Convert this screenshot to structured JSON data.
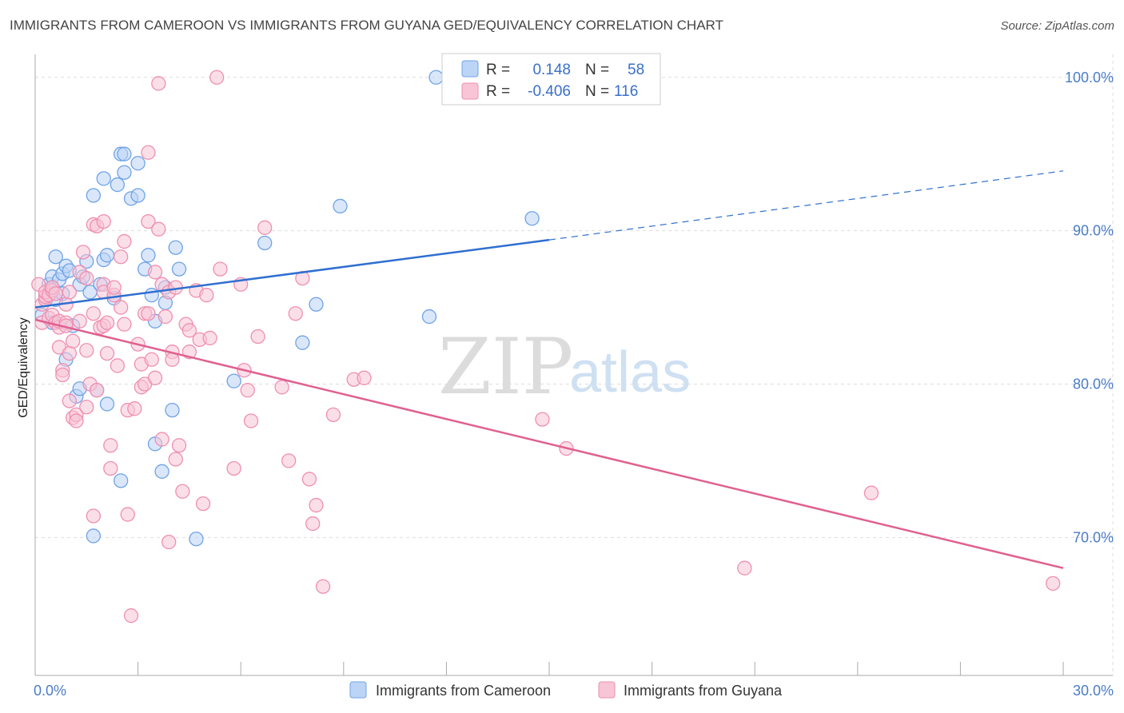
{
  "title": "IMMIGRANTS FROM CAMEROON VS IMMIGRANTS FROM GUYANA GED/EQUIVALENCY CORRELATION CHART",
  "source": "Source: ZipAtlas.com",
  "watermark": {
    "zip": "ZIP",
    "atlas": "atlas"
  },
  "colors": {
    "blue": "#6fa3e6",
    "blue_fill": "#bcd4f5",
    "blue_line": "#2f6fd0",
    "pink": "#ef8fb1",
    "pink_fill": "#f7c5d6",
    "pink_line": "#e0608f",
    "grid": "#dddddd",
    "axis_text": "#4a7cc9"
  },
  "legend": {
    "row1": {
      "r_label": "R =",
      "r_value": "0.148",
      "n_label": "N =",
      "n_value": "58"
    },
    "row2": {
      "r_label": "R =",
      "r_value": "-0.406",
      "n_label": "N =",
      "n_value": "116"
    }
  },
  "chart_data": {
    "type": "scatter",
    "xlabel": "",
    "ylabel": "GED/Equivalency",
    "xlim": [
      0,
      30
    ],
    "ylim": [
      61,
      101.5
    ],
    "x_tick_labels": [
      "0.0%",
      "30.0%"
    ],
    "y_ticks": [
      70,
      80,
      90,
      100
    ],
    "y_tick_labels": [
      "70.0%",
      "80.0%",
      "90.0%",
      "100.0%"
    ],
    "grid": true,
    "legend_position": "bottom",
    "series": [
      {
        "name": "Immigrants from Cameroon",
        "color": "#6fa3e6",
        "trend": {
          "x": [
            0,
            15
          ],
          "y": [
            85.0,
            89.4
          ],
          "dashed_to": [
            30,
            93.9
          ]
        },
        "points": [
          [
            0.2,
            84.5
          ],
          [
            0.3,
            85.5
          ],
          [
            0.4,
            86.5
          ],
          [
            0.5,
            87.0
          ],
          [
            0.5,
            86.3
          ],
          [
            0.5,
            84.0
          ],
          [
            0.6,
            88.3
          ],
          [
            0.6,
            85.5
          ],
          [
            0.7,
            86.8
          ],
          [
            0.8,
            87.2
          ],
          [
            0.8,
            85.9
          ],
          [
            0.9,
            81.6
          ],
          [
            0.9,
            87.7
          ],
          [
            1.0,
            87.4
          ],
          [
            1.1,
            83.8
          ],
          [
            1.2,
            79.2
          ],
          [
            1.3,
            79.7
          ],
          [
            1.3,
            86.5
          ],
          [
            1.4,
            87.0
          ],
          [
            1.5,
            88.0
          ],
          [
            1.6,
            86.0
          ],
          [
            1.7,
            92.3
          ],
          [
            1.7,
            70.1
          ],
          [
            1.8,
            79.6
          ],
          [
            1.9,
            86.5
          ],
          [
            2.0,
            88.1
          ],
          [
            2.0,
            93.4
          ],
          [
            2.1,
            88.4
          ],
          [
            2.1,
            78.7
          ],
          [
            2.3,
            85.6
          ],
          [
            2.4,
            93.0
          ],
          [
            2.5,
            95.0
          ],
          [
            2.5,
            73.7
          ],
          [
            2.6,
            93.8
          ],
          [
            2.6,
            95.0
          ],
          [
            2.8,
            92.1
          ],
          [
            3.0,
            92.3
          ],
          [
            3.0,
            94.4
          ],
          [
            3.2,
            87.5
          ],
          [
            3.3,
            88.4
          ],
          [
            3.4,
            85.8
          ],
          [
            3.5,
            76.1
          ],
          [
            3.5,
            84.1
          ],
          [
            3.7,
            74.3
          ],
          [
            3.8,
            86.3
          ],
          [
            3.8,
            85.3
          ],
          [
            4.0,
            78.3
          ],
          [
            4.1,
            88.9
          ],
          [
            4.2,
            87.5
          ],
          [
            4.7,
            69.9
          ],
          [
            5.8,
            80.2
          ],
          [
            6.7,
            89.2
          ],
          [
            7.8,
            82.7
          ],
          [
            8.2,
            85.2
          ],
          [
            8.9,
            91.6
          ],
          [
            11.5,
            84.4
          ],
          [
            11.7,
            100.0
          ],
          [
            14.5,
            90.8
          ]
        ]
      },
      {
        "name": "Immigrants from Guyana",
        "color": "#ef8fb1",
        "trend": {
          "x": [
            0,
            30
          ],
          "y": [
            84.2,
            68.0
          ]
        },
        "points": [
          [
            0.1,
            86.5
          ],
          [
            0.2,
            85.2
          ],
          [
            0.2,
            84.0
          ],
          [
            0.3,
            85.5
          ],
          [
            0.3,
            85.7
          ],
          [
            0.3,
            86.0
          ],
          [
            0.4,
            85.8
          ],
          [
            0.4,
            84.3
          ],
          [
            0.5,
            86.1
          ],
          [
            0.5,
            84.5
          ],
          [
            0.5,
            86.3
          ],
          [
            0.6,
            84.0
          ],
          [
            0.6,
            85.9
          ],
          [
            0.7,
            83.7
          ],
          [
            0.7,
            84.1
          ],
          [
            0.7,
            82.4
          ],
          [
            0.8,
            80.9
          ],
          [
            0.8,
            80.6
          ],
          [
            0.9,
            84.0
          ],
          [
            0.9,
            83.8
          ],
          [
            0.9,
            85.2
          ],
          [
            1.0,
            86.0
          ],
          [
            1.0,
            82.0
          ],
          [
            1.0,
            78.9
          ],
          [
            1.1,
            82.8
          ],
          [
            1.1,
            77.8
          ],
          [
            1.2,
            78.0
          ],
          [
            1.2,
            77.6
          ],
          [
            1.3,
            84.1
          ],
          [
            1.3,
            87.3
          ],
          [
            1.4,
            88.6
          ],
          [
            1.5,
            86.9
          ],
          [
            1.5,
            78.5
          ],
          [
            1.5,
            82.2
          ],
          [
            1.6,
            80.0
          ],
          [
            1.7,
            84.6
          ],
          [
            1.7,
            90.4
          ],
          [
            1.7,
            71.4
          ],
          [
            1.8,
            90.3
          ],
          [
            1.8,
            79.6
          ],
          [
            1.9,
            83.7
          ],
          [
            2.0,
            86.5
          ],
          [
            2.0,
            86.0
          ],
          [
            2.0,
            83.8
          ],
          [
            2.0,
            90.6
          ],
          [
            2.1,
            84.0
          ],
          [
            2.1,
            82.0
          ],
          [
            2.2,
            74.5
          ],
          [
            2.2,
            76.0
          ],
          [
            2.3,
            85.8
          ],
          [
            2.3,
            86.3
          ],
          [
            2.4,
            81.2
          ],
          [
            2.5,
            85.0
          ],
          [
            2.5,
            88.3
          ],
          [
            2.6,
            89.3
          ],
          [
            2.6,
            83.9
          ],
          [
            2.7,
            78.3
          ],
          [
            2.7,
            71.5
          ],
          [
            2.8,
            64.9
          ],
          [
            2.9,
            78.4
          ],
          [
            3.0,
            82.6
          ],
          [
            3.1,
            81.3
          ],
          [
            3.1,
            79.8
          ],
          [
            3.2,
            80.0
          ],
          [
            3.2,
            84.6
          ],
          [
            3.3,
            95.1
          ],
          [
            3.3,
            90.6
          ],
          [
            3.3,
            84.6
          ],
          [
            3.4,
            81.6
          ],
          [
            3.5,
            80.4
          ],
          [
            3.5,
            87.3
          ],
          [
            3.6,
            90.1
          ],
          [
            3.6,
            99.6
          ],
          [
            3.7,
            86.5
          ],
          [
            3.7,
            76.4
          ],
          [
            3.8,
            84.4
          ],
          [
            3.9,
            86.0
          ],
          [
            3.9,
            69.7
          ],
          [
            4.0,
            82.1
          ],
          [
            4.0,
            81.6
          ],
          [
            4.1,
            86.3
          ],
          [
            4.1,
            75.1
          ],
          [
            4.2,
            76.0
          ],
          [
            4.3,
            73.0
          ],
          [
            4.4,
            83.9
          ],
          [
            4.5,
            82.1
          ],
          [
            4.5,
            83.5
          ],
          [
            4.7,
            86.1
          ],
          [
            4.8,
            82.9
          ],
          [
            4.9,
            72.2
          ],
          [
            5.0,
            85.8
          ],
          [
            5.1,
            83.0
          ],
          [
            5.3,
            100.0
          ],
          [
            5.4,
            87.5
          ],
          [
            5.8,
            74.5
          ],
          [
            6.0,
            86.5
          ],
          [
            6.1,
            80.9
          ],
          [
            6.2,
            79.6
          ],
          [
            6.3,
            77.6
          ],
          [
            6.5,
            83.1
          ],
          [
            6.7,
            90.2
          ],
          [
            7.2,
            79.8
          ],
          [
            7.4,
            75.0
          ],
          [
            7.6,
            84.6
          ],
          [
            7.8,
            86.9
          ],
          [
            8.0,
            73.8
          ],
          [
            8.1,
            70.9
          ],
          [
            8.2,
            72.1
          ],
          [
            8.4,
            66.8
          ],
          [
            8.7,
            78.0
          ],
          [
            9.3,
            80.3
          ],
          [
            9.6,
            80.4
          ],
          [
            14.8,
            77.7
          ],
          [
            15.5,
            75.8
          ],
          [
            20.7,
            68.0
          ],
          [
            24.4,
            72.9
          ],
          [
            29.7,
            67.0
          ]
        ]
      }
    ]
  }
}
